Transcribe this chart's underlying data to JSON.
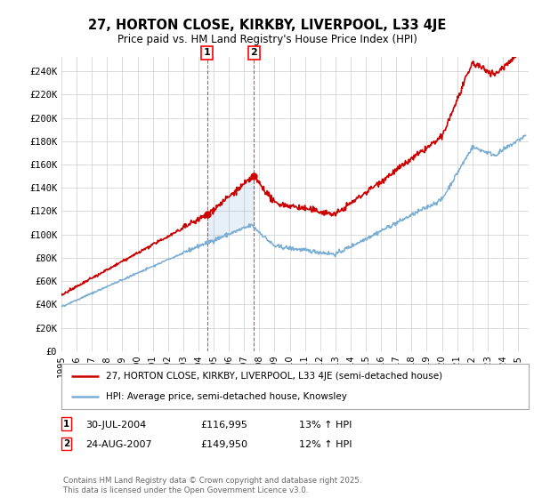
{
  "title": "27, HORTON CLOSE, KIRKBY, LIVERPOOL, L33 4JE",
  "subtitle": "Price paid vs. HM Land Registry's House Price Index (HPI)",
  "ylim": [
    0,
    250000
  ],
  "yticks": [
    0,
    20000,
    40000,
    60000,
    80000,
    100000,
    120000,
    140000,
    160000,
    180000,
    200000,
    220000,
    240000
  ],
  "legend_line1": "27, HORTON CLOSE, KIRKBY, LIVERPOOL, L33 4JE (semi-detached house)",
  "legend_line2": "HPI: Average price, semi-detached house, Knowsley",
  "sale1_date": "30-JUL-2004",
  "sale1_price": "£116,995",
  "sale1_hpi": "13% ↑ HPI",
  "sale2_date": "24-AUG-2007",
  "sale2_price": "£149,950",
  "sale2_hpi": "12% ↑ HPI",
  "copyright": "Contains HM Land Registry data © Crown copyright and database right 2025.\nThis data is licensed under the Open Government Licence v3.0.",
  "red_color": "#cc0000",
  "blue_color": "#7aadd4",
  "sale1_x": 2004.57,
  "sale1_y": 116995,
  "sale2_x": 2007.65,
  "sale2_y": 149950,
  "background_color": "#ffffff",
  "grid_color": "#cccccc",
  "xmin": 1995,
  "xmax": 2025.7
}
